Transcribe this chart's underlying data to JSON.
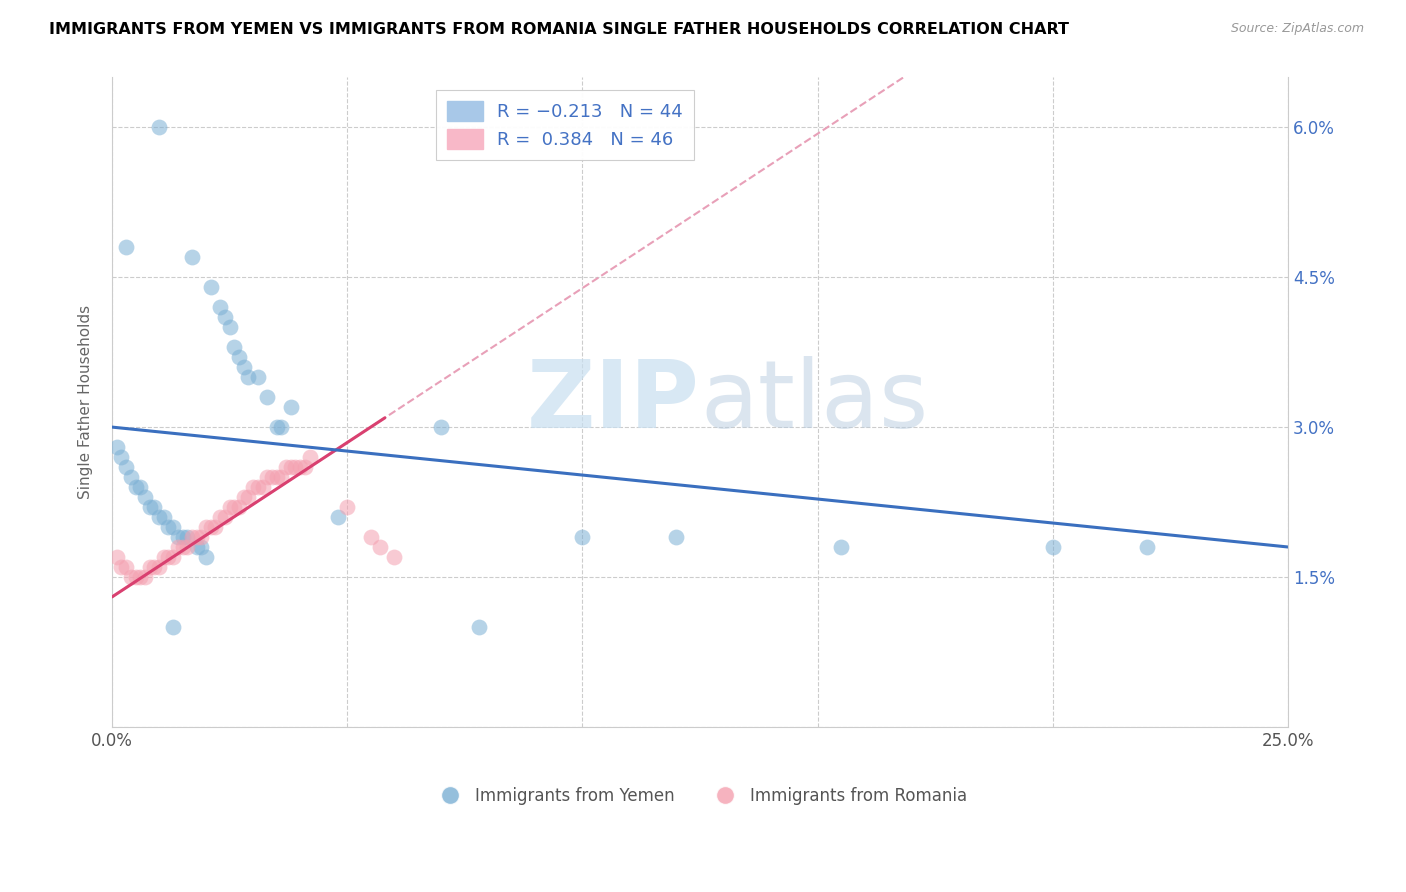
{
  "title": "IMMIGRANTS FROM YEMEN VS IMMIGRANTS FROM ROMANIA SINGLE FATHER HOUSEHOLDS CORRELATION CHART",
  "source": "Source: ZipAtlas.com",
  "ylabel": "Single Father Households",
  "xlim": [
    0.0,
    0.25
  ],
  "ylim": [
    0.0,
    0.065
  ],
  "blue_color": "#7bafd4",
  "pink_color": "#f4a0b0",
  "trendline_blue_color": "#3a6fbf",
  "trendline_pink_color": "#d94070",
  "trendline_pink_dashed_color": "#e8a0b8",
  "watermark_zip": "ZIP",
  "watermark_atlas": "atlas",
  "yemen_x": [
    0.01,
    0.003,
    0.017,
    0.021,
    0.023,
    0.024,
    0.025,
    0.026,
    0.027,
    0.028,
    0.029,
    0.031,
    0.033,
    0.035,
    0.036,
    0.038,
    0.001,
    0.002,
    0.003,
    0.004,
    0.005,
    0.006,
    0.007,
    0.008,
    0.009,
    0.01,
    0.011,
    0.012,
    0.013,
    0.014,
    0.015,
    0.016,
    0.018,
    0.019,
    0.02,
    0.07,
    0.1,
    0.12,
    0.155,
    0.2,
    0.22,
    0.048,
    0.078,
    0.013
  ],
  "yemen_y": [
    0.06,
    0.048,
    0.047,
    0.044,
    0.042,
    0.041,
    0.04,
    0.038,
    0.037,
    0.036,
    0.035,
    0.035,
    0.033,
    0.03,
    0.03,
    0.032,
    0.028,
    0.027,
    0.026,
    0.025,
    0.024,
    0.024,
    0.023,
    0.022,
    0.022,
    0.021,
    0.021,
    0.02,
    0.02,
    0.019,
    0.019,
    0.019,
    0.018,
    0.018,
    0.017,
    0.03,
    0.019,
    0.019,
    0.018,
    0.018,
    0.018,
    0.021,
    0.01,
    0.01
  ],
  "romania_x": [
    0.001,
    0.002,
    0.003,
    0.004,
    0.005,
    0.006,
    0.007,
    0.008,
    0.009,
    0.01,
    0.011,
    0.012,
    0.013,
    0.014,
    0.015,
    0.016,
    0.017,
    0.018,
    0.019,
    0.02,
    0.021,
    0.022,
    0.023,
    0.024,
    0.025,
    0.026,
    0.027,
    0.028,
    0.029,
    0.03,
    0.031,
    0.032,
    0.033,
    0.034,
    0.035,
    0.036,
    0.037,
    0.038,
    0.039,
    0.04,
    0.041,
    0.042,
    0.05,
    0.055,
    0.057,
    0.06
  ],
  "romania_y": [
    0.017,
    0.016,
    0.016,
    0.015,
    0.015,
    0.015,
    0.015,
    0.016,
    0.016,
    0.016,
    0.017,
    0.017,
    0.017,
    0.018,
    0.018,
    0.018,
    0.019,
    0.019,
    0.019,
    0.02,
    0.02,
    0.02,
    0.021,
    0.021,
    0.022,
    0.022,
    0.022,
    0.023,
    0.023,
    0.024,
    0.024,
    0.024,
    0.025,
    0.025,
    0.025,
    0.025,
    0.026,
    0.026,
    0.026,
    0.026,
    0.026,
    0.027,
    0.022,
    0.019,
    0.018,
    0.017
  ]
}
